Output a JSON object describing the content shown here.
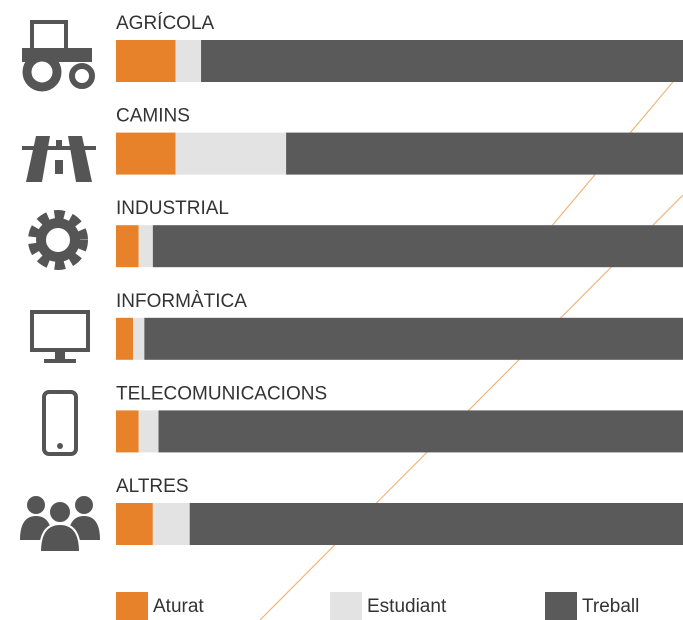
{
  "chart_data": {
    "type": "stacked_bar_horizontal",
    "categories": [
      "AGRÍCOLA",
      "CAMINS",
      "INDUSTRIAL",
      "INFORMÀTICA",
      "TELECOMUNICACIONS",
      "ALTRES"
    ],
    "series": [
      {
        "name": "Aturat",
        "color": "#e8822a",
        "values": [
          10.5,
          10.5,
          4,
          3,
          4,
          6.5
        ]
      },
      {
        "name": "Estudiant",
        "color": "#e3e3e3",
        "values": [
          4.5,
          19.5,
          2.5,
          2,
          3.5,
          6.5
        ]
      },
      {
        "name": "Treball",
        "color": "#5a5a5a",
        "values": [
          85,
          70,
          93.5,
          95,
          92.5,
          87
        ]
      }
    ],
    "xlim": [
      0,
      100
    ]
  }
}
